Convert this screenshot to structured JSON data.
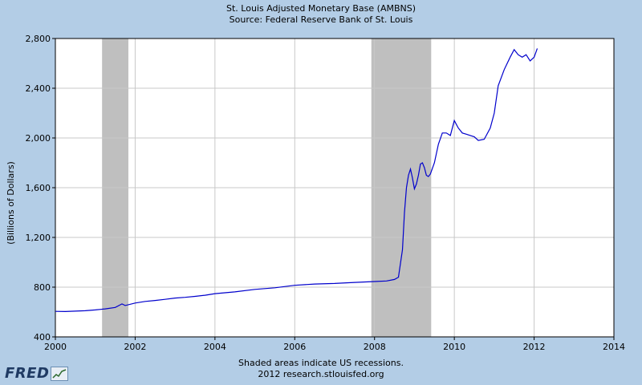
{
  "title_line1": "St. Louis Adjusted Monetary Base (AMBNS)",
  "title_line2": "Source: Federal Reserve Bank of St. Louis",
  "footer_line1": "Shaded areas indicate US recessions.",
  "footer_line2": "2012 research.stlouisfed.org",
  "logo_text": "FRED",
  "colors": {
    "background": "#b3cde6",
    "plot": "#ffffff",
    "line": "#0000cc",
    "recession": "#bfbfbf",
    "grid": "#c8c8c8"
  },
  "chart_data": {
    "type": "line",
    "title": "St. Louis Adjusted Monetary Base (AMBNS)",
    "subtitle": "Source: Federal Reserve Bank of St. Louis",
    "xlabel": "",
    "ylabel": "(Billions of Dollars)",
    "xlim": [
      2000,
      2014
    ],
    "ylim": [
      400,
      2800
    ],
    "xticks": [
      2000,
      2002,
      2004,
      2006,
      2008,
      2010,
      2012,
      2014
    ],
    "xtick_labels": [
      "2000",
      "2002",
      "2004",
      "2006",
      "2008",
      "2010",
      "2012",
      "2014"
    ],
    "yticks": [
      400,
      800,
      1200,
      1600,
      2000,
      2400,
      2800
    ],
    "ytick_labels": [
      "400",
      "800",
      "1,200",
      "1,600",
      "2,000",
      "2,400",
      "2,800"
    ],
    "grid": true,
    "recessions": [
      [
        2001.17,
        2001.83
      ],
      [
        2007.92,
        2009.42
      ]
    ],
    "series": [
      {
        "name": "AMBNS",
        "x": [
          2000.0,
          2000.25,
          2000.5,
          2000.75,
          2001.0,
          2001.25,
          2001.5,
          2001.67,
          2001.75,
          2002.0,
          2002.25,
          2002.5,
          2002.75,
          2003.0,
          2003.25,
          2003.5,
          2003.75,
          2004.0,
          2004.5,
          2005.0,
          2005.5,
          2006.0,
          2006.5,
          2007.0,
          2007.5,
          2008.0,
          2008.3,
          2008.5,
          2008.6,
          2008.7,
          2008.75,
          2008.8,
          2008.85,
          2008.9,
          2008.95,
          2009.0,
          2009.05,
          2009.1,
          2009.15,
          2009.2,
          2009.25,
          2009.3,
          2009.35,
          2009.4,
          2009.5,
          2009.6,
          2009.7,
          2009.8,
          2009.9,
          2010.0,
          2010.1,
          2010.2,
          2010.3,
          2010.4,
          2010.5,
          2010.6,
          2010.75,
          2010.9,
          2011.0,
          2011.1,
          2011.25,
          2011.4,
          2011.5,
          2011.6,
          2011.7,
          2011.8,
          2011.9,
          2012.0,
          2012.08
        ],
        "values": [
          605,
          604,
          607,
          610,
          617,
          625,
          637,
          665,
          652,
          672,
          685,
          693,
          702,
          712,
          718,
          726,
          735,
          748,
          762,
          782,
          795,
          815,
          825,
          830,
          838,
          845,
          850,
          862,
          880,
          1100,
          1400,
          1600,
          1700,
          1750,
          1680,
          1590,
          1630,
          1700,
          1790,
          1800,
          1760,
          1700,
          1690,
          1710,
          1800,
          1950,
          2040,
          2040,
          2020,
          2140,
          2080,
          2040,
          2030,
          2020,
          2010,
          1980,
          1990,
          2080,
          2200,
          2420,
          2550,
          2650,
          2710,
          2670,
          2650,
          2670,
          2620,
          2650,
          2720
        ]
      }
    ]
  }
}
